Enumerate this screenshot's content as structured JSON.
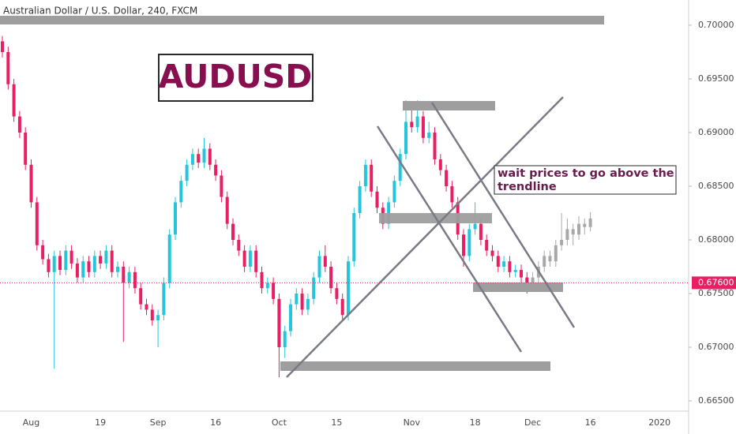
{
  "chart_data": {
    "type": "candlestick",
    "title": "Australian Dollar / U.S. Dollar, 240, FXCM",
    "annotations": {
      "symbol_box": "AUDUSD",
      "note_lines": [
        "wait prices to go above the",
        "trendline"
      ]
    },
    "last_price": {
      "value": 0.676,
      "label": "0.67600",
      "color": "#e91e63"
    },
    "ylim": [
      0.66412,
      0.70235
    ],
    "yticks": [
      {
        "value": 0.665,
        "label": "0.66500"
      },
      {
        "value": 0.67,
        "label": "0.67000"
      },
      {
        "value": 0.675,
        "label": "0.67500"
      },
      {
        "value": 0.68,
        "label": "0.68000"
      },
      {
        "value": 0.685,
        "label": "0.68500"
      },
      {
        "value": 0.69,
        "label": "0.69000"
      },
      {
        "value": 0.695,
        "label": "0.69500"
      },
      {
        "value": 0.7,
        "label": "0.70000"
      }
    ],
    "grid": false,
    "categories": [
      null,
      null,
      null,
      null,
      null,
      "Aug",
      null,
      null,
      null,
      null,
      null,
      null,
      null,
      null,
      null,
      null,
      null,
      "19",
      null,
      null,
      null,
      null,
      null,
      null,
      null,
      null,
      null,
      "Sep",
      null,
      null,
      null,
      null,
      null,
      null,
      null,
      null,
      null,
      "16",
      null,
      null,
      null,
      null,
      null,
      null,
      null,
      null,
      null,
      null,
      "Oct",
      null,
      null,
      null,
      null,
      null,
      null,
      null,
      null,
      null,
      "15",
      null,
      null,
      null,
      null,
      null,
      null,
      null,
      null,
      null,
      null,
      null,
      null,
      "Nov",
      null,
      null,
      null,
      null,
      null,
      null,
      null,
      null,
      null,
      null,
      "18",
      null,
      null,
      null,
      null,
      null,
      null,
      null,
      null,
      null,
      "Dec",
      null,
      null,
      null,
      null,
      null,
      null,
      null,
      null,
      null,
      "16",
      null,
      null,
      null,
      null,
      null,
      null,
      null,
      null,
      null,
      null,
      null,
      "2020"
    ],
    "series": [
      {
        "color_up": "#26c6da",
        "color_down": "#e91e63",
        "candles": [
          [
            0.6985,
            0.699,
            0.697,
            0.6975
          ],
          [
            0.6975,
            0.698,
            0.694,
            0.6945
          ],
          [
            0.6945,
            0.695,
            0.691,
            0.6915
          ],
          [
            0.6915,
            0.692,
            0.6895,
            0.69
          ],
          [
            0.69,
            0.6905,
            0.6865,
            0.687
          ],
          [
            0.687,
            0.6875,
            0.683,
            0.6835
          ],
          [
            0.6835,
            0.684,
            0.679,
            0.6795
          ],
          [
            0.6795,
            0.68,
            0.6777,
            0.6782
          ],
          [
            0.6782,
            0.6787,
            0.6765,
            0.677
          ],
          [
            0.677,
            0.679,
            0.668,
            0.6785
          ],
          [
            0.6785,
            0.679,
            0.6767,
            0.6772
          ],
          [
            0.6772,
            0.6795,
            0.6767,
            0.679
          ],
          [
            0.679,
            0.6795,
            0.6773,
            0.6778
          ],
          [
            0.6778,
            0.6783,
            0.676,
            0.6765
          ],
          [
            0.6765,
            0.6785,
            0.676,
            0.678
          ],
          [
            0.678,
            0.6785,
            0.6765,
            0.677
          ],
          [
            0.677,
            0.679,
            0.6765,
            0.6785
          ],
          [
            0.6785,
            0.679,
            0.6773,
            0.6778
          ],
          [
            0.6778,
            0.6795,
            0.6773,
            0.679
          ],
          [
            0.679,
            0.6795,
            0.6765,
            0.677
          ],
          [
            0.677,
            0.678,
            0.6765,
            0.6775
          ],
          [
            0.6775,
            0.678,
            0.6705,
            0.676
          ],
          [
            0.676,
            0.6775,
            0.6755,
            0.677
          ],
          [
            0.677,
            0.6775,
            0.675,
            0.6755
          ],
          [
            0.6755,
            0.676,
            0.6735,
            0.674
          ],
          [
            0.674,
            0.6745,
            0.673,
            0.6735
          ],
          [
            0.6735,
            0.674,
            0.672,
            0.6725
          ],
          [
            0.6725,
            0.6735,
            0.67,
            0.673
          ],
          [
            0.673,
            0.6765,
            0.6725,
            0.676
          ],
          [
            0.676,
            0.681,
            0.6755,
            0.6805
          ],
          [
            0.6805,
            0.684,
            0.68,
            0.6835
          ],
          [
            0.6835,
            0.686,
            0.683,
            0.6855
          ],
          [
            0.6855,
            0.6875,
            0.685,
            0.687
          ],
          [
            0.687,
            0.6885,
            0.6865,
            0.688
          ],
          [
            0.688,
            0.6885,
            0.6867,
            0.6872
          ],
          [
            0.6872,
            0.6895,
            0.6867,
            0.6885
          ],
          [
            0.6885,
            0.689,
            0.6865,
            0.687
          ],
          [
            0.687,
            0.6875,
            0.6855,
            0.686
          ],
          [
            0.686,
            0.6865,
            0.6835,
            0.684
          ],
          [
            0.684,
            0.6845,
            0.681,
            0.6815
          ],
          [
            0.6815,
            0.682,
            0.6795,
            0.68
          ],
          [
            0.68,
            0.6805,
            0.6785,
            0.679
          ],
          [
            0.679,
            0.6795,
            0.677,
            0.6775
          ],
          [
            0.6775,
            0.6795,
            0.677,
            0.679
          ],
          [
            0.679,
            0.6795,
            0.6765,
            0.677
          ],
          [
            0.677,
            0.6775,
            0.675,
            0.6755
          ],
          [
            0.6755,
            0.6765,
            0.675,
            0.676
          ],
          [
            0.676,
            0.6765,
            0.674,
            0.6745
          ],
          [
            0.6745,
            0.675,
            0.6672,
            0.67
          ],
          [
            0.67,
            0.672,
            0.669,
            0.6715
          ],
          [
            0.6715,
            0.6745,
            0.671,
            0.674
          ],
          [
            0.674,
            0.6755,
            0.6735,
            0.675
          ],
          [
            0.675,
            0.6755,
            0.673,
            0.6735
          ],
          [
            0.6735,
            0.675,
            0.673,
            0.6745
          ],
          [
            0.6745,
            0.677,
            0.674,
            0.6765
          ],
          [
            0.6765,
            0.679,
            0.676,
            0.6785
          ],
          [
            0.6785,
            0.6795,
            0.677,
            0.6775
          ],
          [
            0.6775,
            0.678,
            0.675,
            0.6755
          ],
          [
            0.6755,
            0.676,
            0.674,
            0.6745
          ],
          [
            0.6745,
            0.675,
            0.6725,
            0.673
          ],
          [
            0.673,
            0.6785,
            0.6725,
            0.678
          ],
          [
            0.678,
            0.683,
            0.6775,
            0.6825
          ],
          [
            0.6825,
            0.6855,
            0.682,
            0.685
          ],
          [
            0.685,
            0.6875,
            0.6845,
            0.687
          ],
          [
            0.687,
            0.6875,
            0.684,
            0.6845
          ],
          [
            0.6845,
            0.685,
            0.6825,
            0.683
          ],
          [
            0.683,
            0.6835,
            0.681,
            0.6815
          ],
          [
            0.6815,
            0.684,
            0.681,
            0.6835
          ],
          [
            0.6835,
            0.686,
            0.683,
            0.6855
          ],
          [
            0.6855,
            0.6885,
            0.685,
            0.688
          ],
          [
            0.688,
            0.693,
            0.6875,
            0.691
          ],
          [
            0.691,
            0.6925,
            0.69,
            0.6905
          ],
          [
            0.6905,
            0.693,
            0.69,
            0.6915
          ],
          [
            0.6915,
            0.692,
            0.689,
            0.6895
          ],
          [
            0.6895,
            0.691,
            0.689,
            0.69
          ],
          [
            0.69,
            0.6905,
            0.687,
            0.6875
          ],
          [
            0.6875,
            0.688,
            0.686,
            0.6865
          ],
          [
            0.6865,
            0.687,
            0.6845,
            0.685
          ],
          [
            0.685,
            0.6855,
            0.683,
            0.6835
          ],
          [
            0.6835,
            0.684,
            0.68,
            0.6805
          ],
          [
            0.6805,
            0.681,
            0.6775,
            0.6785
          ],
          [
            0.6785,
            0.6815,
            0.678,
            0.681
          ],
          [
            0.681,
            0.6835,
            0.6805,
            0.6815
          ],
          [
            0.6815,
            0.682,
            0.6795,
            0.68
          ],
          [
            0.68,
            0.6805,
            0.6785,
            0.679
          ],
          [
            0.679,
            0.6795,
            0.678,
            0.6785
          ],
          [
            0.6785,
            0.679,
            0.677,
            0.6775
          ],
          [
            0.6775,
            0.6785,
            0.677,
            0.678
          ],
          [
            0.678,
            0.6785,
            0.6765,
            0.677
          ],
          [
            0.677,
            0.6777,
            0.6765,
            0.6772
          ],
          [
            0.6772,
            0.6777,
            0.6755,
            0.6765
          ],
          [
            0.6765,
            0.677,
            0.675,
            0.676
          ],
          null,
          null,
          null,
          null,
          null,
          null,
          null,
          null,
          null,
          null,
          null,
          null,
          null,
          null,
          null,
          null,
          null,
          null,
          null,
          null,
          null,
          null,
          null
        ]
      },
      {
        "color_up": "#a8a8a8",
        "color_down": "#a8a8a8",
        "candles": [
          null,
          null,
          null,
          null,
          null,
          null,
          null,
          null,
          null,
          null,
          null,
          null,
          null,
          null,
          null,
          null,
          null,
          null,
          null,
          null,
          null,
          null,
          null,
          null,
          null,
          null,
          null,
          null,
          null,
          null,
          null,
          null,
          null,
          null,
          null,
          null,
          null,
          null,
          null,
          null,
          null,
          null,
          null,
          null,
          null,
          null,
          null,
          null,
          null,
          null,
          null,
          null,
          null,
          null,
          null,
          null,
          null,
          null,
          null,
          null,
          null,
          null,
          null,
          null,
          null,
          null,
          null,
          null,
          null,
          null,
          null,
          null,
          null,
          null,
          null,
          null,
          null,
          null,
          null,
          null,
          null,
          null,
          null,
          null,
          null,
          null,
          null,
          null,
          null,
          null,
          null,
          null,
          [
            0.676,
            0.677,
            0.6755,
            0.6765
          ],
          [
            0.6765,
            0.678,
            0.676,
            0.6775
          ],
          [
            0.6775,
            0.679,
            0.677,
            0.6785
          ],
          [
            0.6785,
            0.679,
            0.6775,
            0.678
          ],
          [
            0.678,
            0.68,
            0.6775,
            0.6795
          ],
          [
            0.6795,
            0.6825,
            0.679,
            0.68
          ],
          [
            0.68,
            0.682,
            0.6795,
            0.681
          ],
          [
            0.681,
            0.6815,
            0.6795,
            0.6805
          ],
          [
            0.6805,
            0.6822,
            0.68,
            0.6815
          ],
          [
            0.6815,
            0.682,
            0.6805,
            0.6812
          ],
          [
            0.6812,
            0.6826,
            0.6808,
            0.682
          ],
          null,
          null,
          null,
          null,
          null,
          null,
          null,
          null,
          null,
          null,
          null,
          null
        ]
      }
    ]
  }
}
